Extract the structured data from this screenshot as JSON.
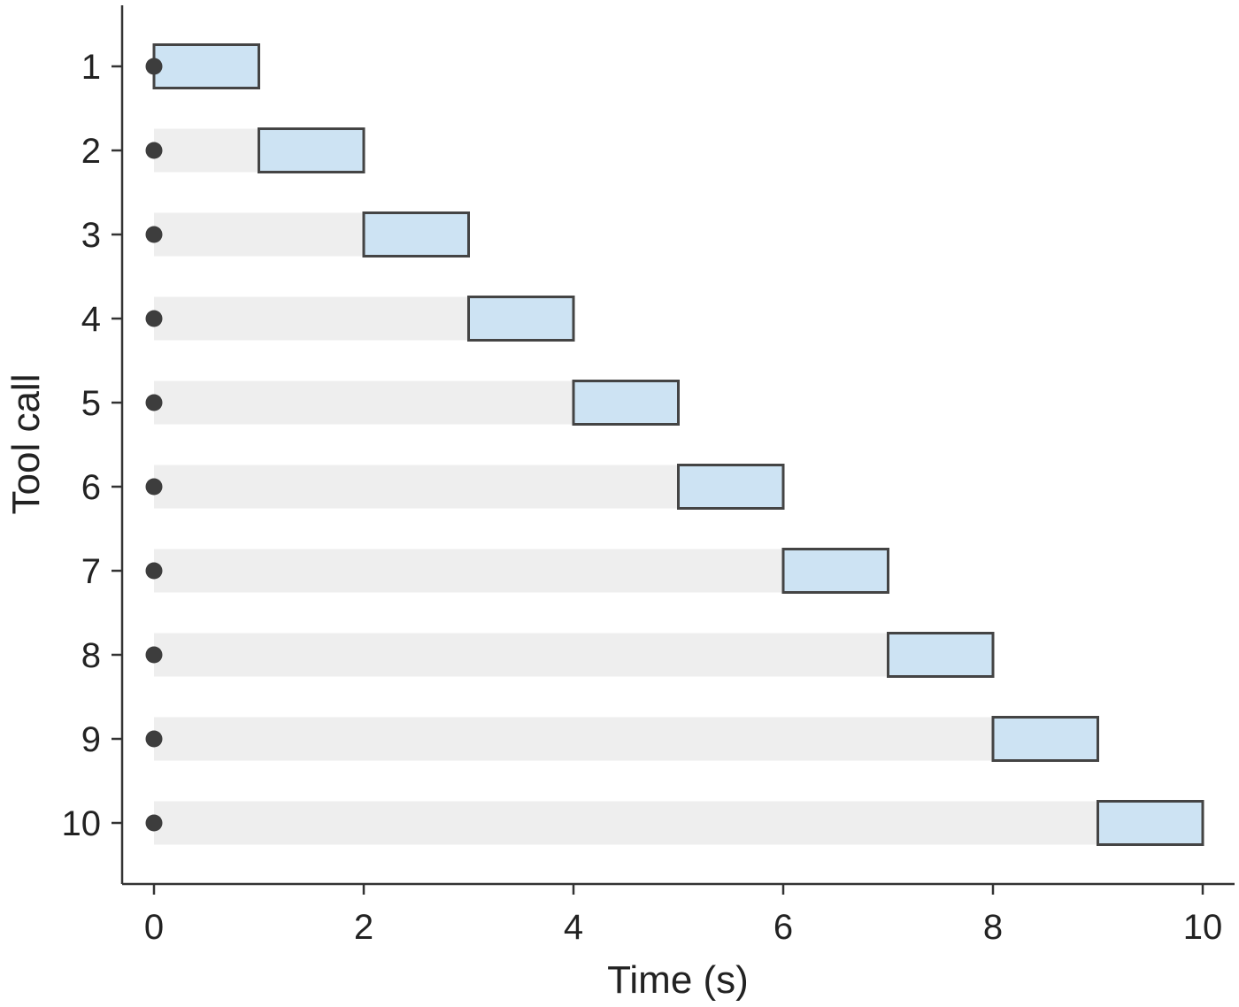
{
  "chart_data": {
    "type": "bar",
    "subtype": "gantt",
    "title": "",
    "xlabel": "Time (s)",
    "ylabel": "Tool call",
    "xlim": [
      -0.3,
      10.3
    ],
    "xticks": [
      "0",
      "2",
      "4",
      "6",
      "8",
      "10"
    ],
    "grid": false,
    "legend": "none",
    "categories": [
      "1",
      "2",
      "3",
      "4",
      "5",
      "6",
      "7",
      "8",
      "9",
      "10"
    ],
    "series": [
      {
        "role": "wait",
        "start": [
          0,
          0,
          0,
          0,
          0,
          0,
          0,
          0,
          0,
          0
        ],
        "end": [
          0,
          1,
          2,
          3,
          4,
          5,
          6,
          7,
          8,
          9
        ]
      },
      {
        "role": "run",
        "start": [
          0,
          1,
          2,
          3,
          4,
          5,
          6,
          7,
          8,
          9
        ],
        "end": [
          1,
          2,
          3,
          4,
          5,
          6,
          7,
          8,
          9,
          10
        ]
      },
      {
        "role": "issued",
        "x": [
          0,
          0,
          0,
          0,
          0,
          0,
          0,
          0,
          0,
          0
        ]
      }
    ],
    "colors": {
      "wait": "#eeeeee",
      "run": "#cde3f3",
      "run_edge": "#444444",
      "marker": "#3d3d3d",
      "axis": "#333333"
    }
  }
}
